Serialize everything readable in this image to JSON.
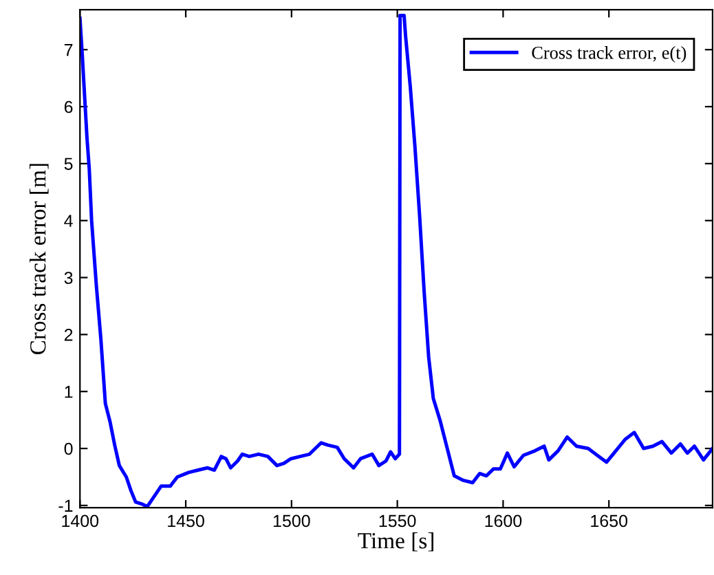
{
  "chart_data": {
    "type": "line",
    "xlabel": "Time [s]",
    "ylabel": "Cross track error [m]",
    "xlim": [
      1400,
      1699
    ],
    "ylim": [
      -1.04,
      7.7
    ],
    "xticks": [
      1400,
      1450,
      1500,
      1550,
      1600,
      1650
    ],
    "yticks": [
      -1,
      0,
      1,
      2,
      3,
      4,
      5,
      6,
      7
    ],
    "grid": false,
    "legend": "top right",
    "marker": "none",
    "line_style": "solid",
    "series": [
      {
        "name": "Cross track error, e(t)",
        "color": "#0000ff",
        "x": [
          1400,
          1401.1,
          1402.2,
          1403.3,
          1404.4,
          1405.5,
          1407.7,
          1409.9,
          1412,
          1414.2,
          1416.4,
          1418.6,
          1421.9,
          1424.1,
          1426.3,
          1429.6,
          1431.8,
          1434,
          1438.4,
          1442.7,
          1446,
          1451.4,
          1455.8,
          1460.2,
          1463.5,
          1466.8,
          1469,
          1471.2,
          1474.5,
          1476.7,
          1480,
          1484.4,
          1488.8,
          1493.1,
          1496.4,
          1499.7,
          1504.1,
          1508.5,
          1514,
          1517.2,
          1521.6,
          1524.9,
          1529.3,
          1532.6,
          1538.1,
          1541.3,
          1544.6,
          1546.8,
          1549,
          1551,
          1551.3,
          1553.2,
          1553.9,
          1556.1,
          1558.3,
          1560.5,
          1562.7,
          1564.8,
          1567,
          1570.3,
          1573.6,
          1576.9,
          1581.2,
          1585.6,
          1588.9,
          1592.1,
          1595.4,
          1598.7,
          1602,
          1605.2,
          1609.6,
          1615.1,
          1619.4,
          1621.6,
          1626,
          1630.3,
          1634.7,
          1640.2,
          1644.5,
          1648.9,
          1653.3,
          1657.7,
          1662,
          1666.4,
          1670.8,
          1675.1,
          1679.5,
          1683.8,
          1687.1,
          1690.4,
          1694.7,
          1699
        ],
        "values": [
          7.55,
          6.9,
          6.18,
          5.46,
          4.9,
          4.0,
          2.88,
          1.91,
          0.79,
          0.47,
          0.06,
          -0.3,
          -0.5,
          -0.74,
          -0.94,
          -0.98,
          -1.02,
          -0.9,
          -0.66,
          -0.66,
          -0.5,
          -0.42,
          -0.38,
          -0.34,
          -0.38,
          -0.14,
          -0.18,
          -0.34,
          -0.22,
          -0.1,
          -0.14,
          -0.1,
          -0.14,
          -0.3,
          -0.26,
          -0.18,
          -0.14,
          -0.1,
          0.1,
          0.06,
          0.02,
          -0.18,
          -0.34,
          -0.18,
          -0.1,
          -0.3,
          -0.22,
          -0.06,
          -0.18,
          -0.1,
          7.6,
          7.6,
          7.24,
          6.36,
          5.31,
          4.1,
          2.74,
          1.61,
          0.88,
          0.48,
          0.0,
          -0.48,
          -0.56,
          -0.6,
          -0.44,
          -0.48,
          -0.36,
          -0.36,
          -0.08,
          -0.32,
          -0.12,
          -0.04,
          0.04,
          -0.2,
          -0.04,
          0.2,
          0.04,
          0.0,
          -0.12,
          -0.24,
          -0.04,
          0.16,
          0.28,
          0.0,
          0.04,
          0.12,
          -0.08,
          0.08,
          -0.08,
          0.04,
          -0.2,
          0.0
        ]
      }
    ]
  }
}
